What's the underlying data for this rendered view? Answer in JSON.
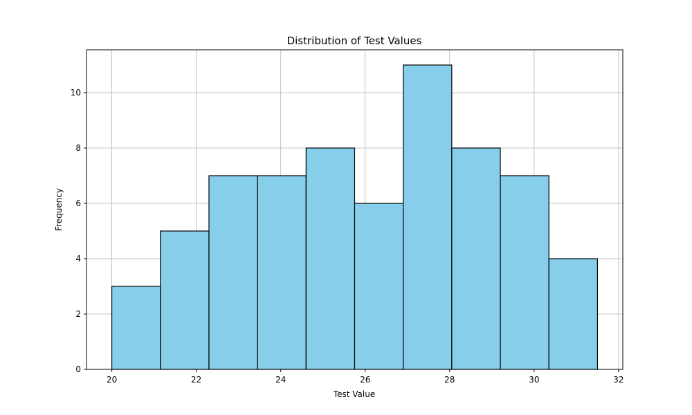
{
  "chart_data": {
    "type": "bar",
    "subtype": "histogram",
    "title": "Distribution of Test Values",
    "xlabel": "Test Value",
    "ylabel": "Frequency",
    "bin_edges": [
      20.0,
      21.15,
      22.3,
      23.45,
      24.6,
      25.75,
      26.9,
      28.05,
      29.2,
      30.35,
      31.5
    ],
    "values": [
      3,
      5,
      7,
      7,
      8,
      6,
      11,
      8,
      7,
      4
    ],
    "xlim": [
      19.4,
      32.1
    ],
    "ylim": [
      0,
      11.55
    ],
    "xticks": [
      20,
      22,
      24,
      26,
      28,
      30,
      32
    ],
    "yticks": [
      0,
      2,
      4,
      6,
      8,
      10
    ],
    "grid": true,
    "colors": {
      "bar_fill": "#87CEEB",
      "bar_edge": "#000000",
      "grid": "#b0b0b0"
    }
  }
}
